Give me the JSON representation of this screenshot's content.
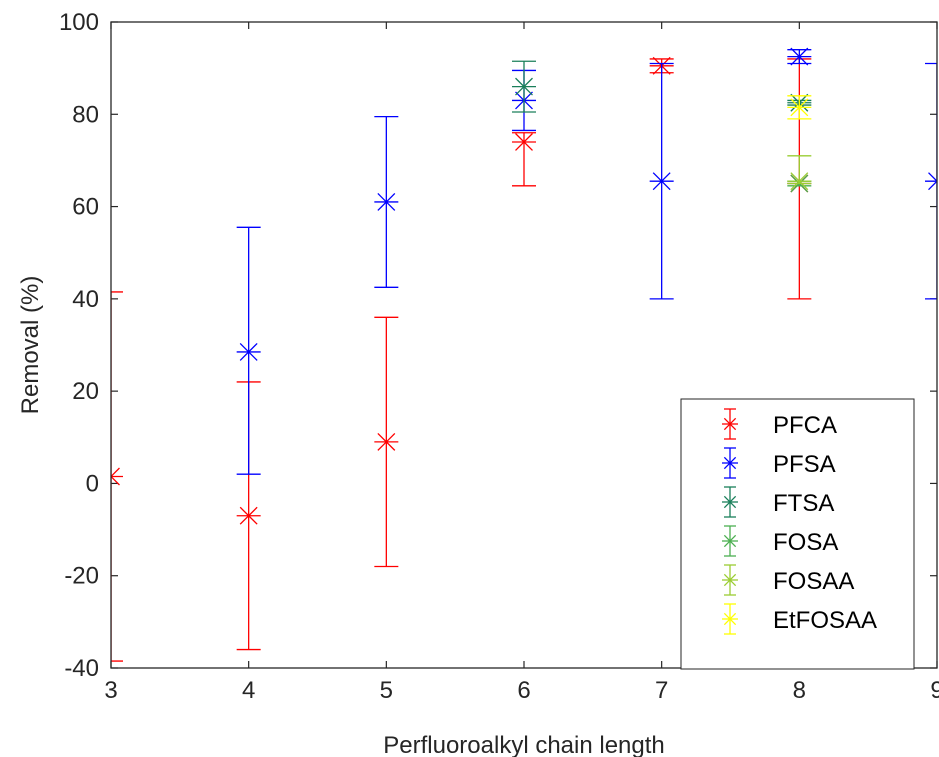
{
  "chart_data": {
    "type": "scatter",
    "title": "",
    "xlabel": "Perfluoroalkyl chain length",
    "ylabel": "Removal (%)",
    "xlim": [
      3,
      9
    ],
    "ylim": [
      -40,
      100
    ],
    "xticks": [
      "3",
      "4",
      "5",
      "6",
      "7",
      "8",
      "9"
    ],
    "yticks": [
      "-40",
      "-20",
      "0",
      "20",
      "40",
      "60",
      "80",
      "100"
    ],
    "grid": false,
    "legend_position": "bottom-right",
    "error_bars": true,
    "series": [
      {
        "name": "PFCA",
        "color": "#ff0000",
        "x": [
          3,
          4,
          5,
          6,
          7,
          8
        ],
        "y": [
          1.5,
          -7,
          9,
          74,
          90.5,
          65
        ],
        "y_low": [
          -38.5,
          -36,
          -18,
          64.5,
          89,
          40
        ],
        "y_high": [
          41.5,
          22,
          36,
          76,
          92,
          92
        ]
      },
      {
        "name": "PFSA",
        "color": "#0000ff",
        "x": [
          4,
          5,
          6,
          7,
          8,
          9
        ],
        "y": [
          28.5,
          61,
          83,
          65.5,
          92.5,
          65.5
        ],
        "y_low": [
          2,
          42.5,
          76.5,
          40,
          91,
          40
        ],
        "y_high": [
          55.5,
          79.5,
          89.5,
          91,
          94,
          91
        ]
      },
      {
        "name": "FTSA",
        "color": "#1a7f5a",
        "x": [
          6,
          8
        ],
        "y": [
          86,
          82.5
        ],
        "y_low": [
          80.5,
          82
        ],
        "y_high": [
          91.5,
          83
        ]
      },
      {
        "name": "FOSA",
        "color": "#4caf50",
        "x": [
          8
        ],
        "y": [
          65
        ],
        "y_low": [
          64.5
        ],
        "y_high": [
          65.5
        ]
      },
      {
        "name": "FOSAA",
        "color": "#9acd32",
        "x": [
          8
        ],
        "y": [
          65.5
        ],
        "y_low": [
          65
        ],
        "y_high": [
          71
        ]
      },
      {
        "name": "EtFOSAA",
        "color": "#ffff00",
        "x": [
          8
        ],
        "y": [
          81.5
        ],
        "y_low": [
          79
        ],
        "y_high": [
          84
        ]
      }
    ]
  }
}
